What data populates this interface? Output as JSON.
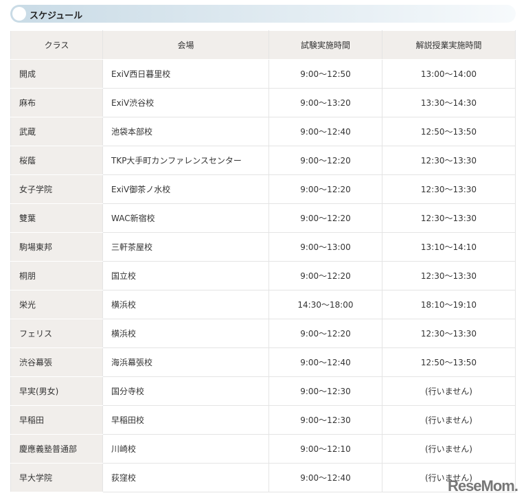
{
  "section_title": "スケジュール",
  "headers": [
    "クラス",
    "会場",
    "試験実施時間",
    "解説授業実施時間"
  ],
  "rows": [
    [
      "開成",
      "ExiV西日暮里校",
      "9:00〜12:50",
      "13:00〜14:00"
    ],
    [
      "麻布",
      "ExiV渋谷校",
      "9:00〜13:20",
      "13:30〜14:30"
    ],
    [
      "武蔵",
      "池袋本部校",
      "9:00〜12:40",
      "12:50〜13:50"
    ],
    [
      "桜蔭",
      "TKP大手町カンファレンスセンター",
      "9:00〜12:20",
      "12:30〜13:30"
    ],
    [
      "女子学院",
      "ExiV御茶ノ水校",
      "9:00〜12:20",
      "12:30〜13:30"
    ],
    [
      "雙葉",
      "WAC新宿校",
      "9:00〜12:20",
      "12:30〜13:30"
    ],
    [
      "駒場東邦",
      "三軒茶屋校",
      "9:00〜13:00",
      "13:10〜14:10"
    ],
    [
      "桐朋",
      "国立校",
      "9:00〜12:20",
      "12:30〜13:30"
    ],
    [
      "栄光",
      "横浜校",
      "14:30〜18:00",
      "18:10〜19:10"
    ],
    [
      "フェリス",
      "横浜校",
      "9:00〜12:20",
      "12:30〜13:30"
    ],
    [
      "渋谷幕張",
      "海浜幕張校",
      "9:00〜12:40",
      "12:50〜13:50"
    ],
    [
      "早実(男女)",
      "国分寺校",
      "9:00〜12:30",
      "(行いません)"
    ],
    [
      "早稲田",
      "早稲田校",
      "9:00〜12:30",
      "(行いません)"
    ],
    [
      "慶應義塾普通部",
      "川崎校",
      "9:00〜12:10",
      "(行いません)"
    ],
    [
      "早大学院",
      "荻窪校",
      "9:00〜12:40",
      "(行いません)"
    ]
  ],
  "watermark": "ReseMom"
}
